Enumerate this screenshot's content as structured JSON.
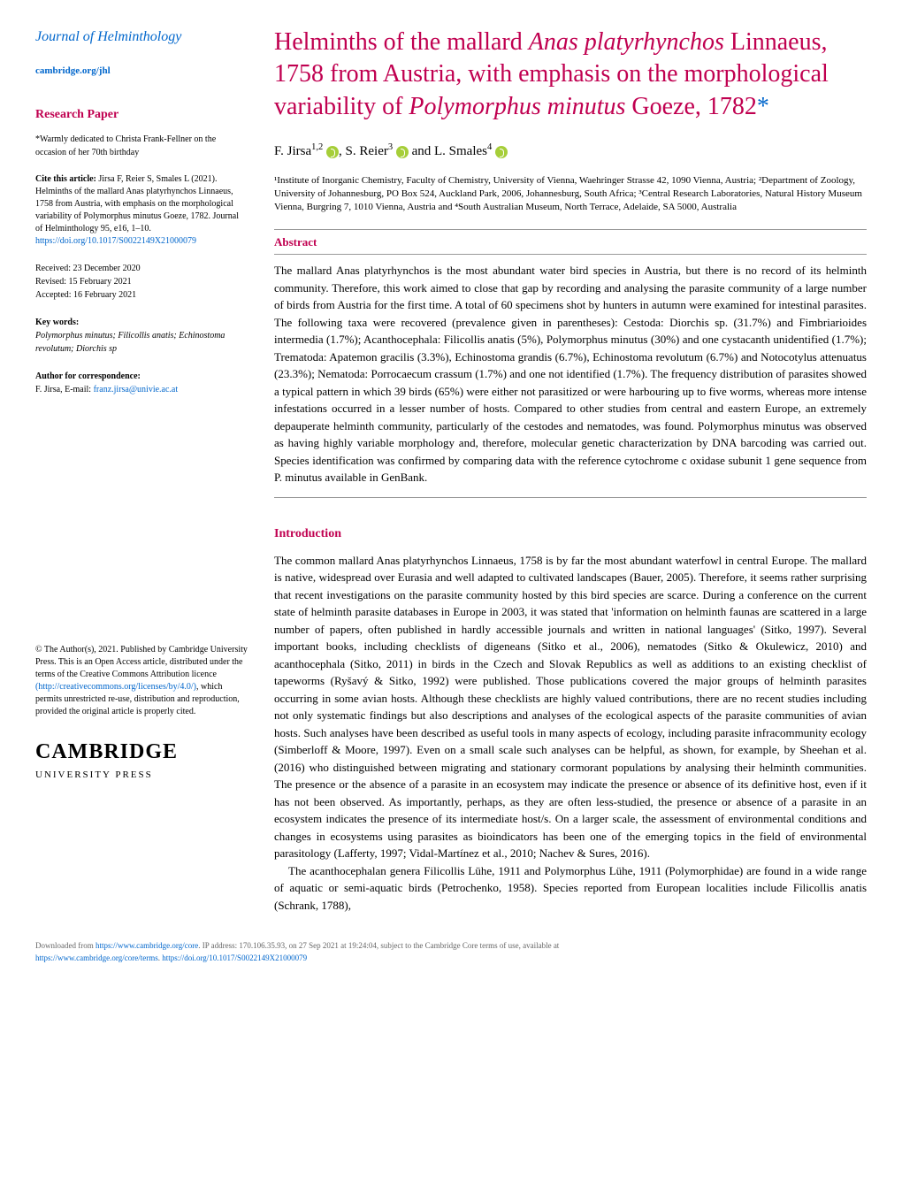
{
  "journal": {
    "name": "Journal of Helminthology",
    "link": "cambridge.org/jhl"
  },
  "sidebar": {
    "paper_label": "Research Paper",
    "dedication": "*Warmly dedicated to Christa Frank-Fellner on the occasion of her 70th birthday",
    "cite_label": "Cite this article:",
    "citation": "Jirsa F, Reier S, Smales L (2021). Helminths of the mallard Anas platyrhynchos Linnaeus, 1758 from Austria, with emphasis on the morphological variability of Polymorphus minutus Goeze, 1782. Journal of Helminthology 95, e16, 1–10.",
    "doi": "https://doi.org/10.1017/S0022149X21000079",
    "received": "Received: 23 December 2020",
    "revised": "Revised: 15 February 2021",
    "accepted": "Accepted: 16 February 2021",
    "keywords_label": "Key words:",
    "keywords": "Polymorphus minutus; Filicollis anatis; Echinostoma revolutum; Diorchis sp",
    "corr_label": "Author for correspondence:",
    "corr_text": "F. Jirsa, E-mail:",
    "corr_email": "franz.jirsa@univie.ac.at",
    "license": "© The Author(s), 2021. Published by Cambridge University Press. This is an Open Access article, distributed under the terms of the Creative Commons Attribution licence",
    "license_url": "(http://creativecommons.org/licenses/by/4.0/)",
    "license_cont": ", which permits unrestricted re-use, distribution and reproduction, provided the original article is properly cited.",
    "logo_main": "CAMBRIDGE",
    "logo_sub": "UNIVERSITY PRESS"
  },
  "article": {
    "title_pre": "Helminths of the mallard ",
    "title_sp1": "Anas platyrhynchos",
    "title_mid": " Linnaeus, 1758 from Austria, with emphasis on the morphological variability of ",
    "title_sp2": "Polymorphus minutus",
    "title_end": " Goeze, 1782",
    "title_star": "*",
    "authors_1": "F. Jirsa",
    "authors_1_sup": "1,2",
    "authors_2": ", S. Reier",
    "authors_2_sup": "3",
    "authors_3": " and L. Smales",
    "authors_3_sup": "4",
    "affiliations": "¹Institute of Inorganic Chemistry, Faculty of Chemistry, University of Vienna, Waehringer Strasse 42, 1090 Vienna, Austria; ²Department of Zoology, University of Johannesburg, PO Box 524, Auckland Park, 2006, Johannesburg, South Africa; ³Central Research Laboratories, Natural History Museum Vienna, Burgring 7, 1010 Vienna, Austria and ⁴South Australian Museum, North Terrace, Adelaide, SA 5000, Australia",
    "abstract_heading": "Abstract",
    "abstract": "The mallard Anas platyrhynchos is the most abundant water bird species in Austria, but there is no record of its helminth community. Therefore, this work aimed to close that gap by recording and analysing the parasite community of a large number of birds from Austria for the first time. A total of 60 specimens shot by hunters in autumn were examined for intestinal parasites. The following taxa were recovered (prevalence given in parentheses): Cestoda: Diorchis sp. (31.7%) and Fimbriarioides intermedia (1.7%); Acanthocephala: Filicollis anatis (5%), Polymorphus minutus (30%) and one cystacanth unidentified (1.7%); Trematoda: Apatemon gracilis (3.3%), Echinostoma grandis (6.7%), Echinostoma revolutum (6.7%) and Notocotylus attenuatus (23.3%); Nematoda: Porrocaecum crassum (1.7%) and one not identified (1.7%). The frequency distribution of parasites showed a typical pattern in which 39 birds (65%) were either not parasitized or were harbouring up to five worms, whereas more intense infestations occurred in a lesser number of hosts. Compared to other studies from central and eastern Europe, an extremely depauperate helminth community, particularly of the cestodes and nematodes, was found. Polymorphus minutus was observed as having highly variable morphology and, therefore, molecular genetic characterization by DNA barcoding was carried out. Species identification was confirmed by comparing data with the reference cytochrome c oxidase subunit 1 gene sequence from P. minutus available in GenBank.",
    "intro_heading": "Introduction",
    "intro_p1": "The common mallard Anas platyrhynchos Linnaeus, 1758 is by far the most abundant waterfowl in central Europe. The mallard is native, widespread over Eurasia and well adapted to cultivated landscapes (Bauer, 2005). Therefore, it seems rather surprising that recent investigations on the parasite community hosted by this bird species are scarce. During a conference on the current state of helminth parasite databases in Europe in 2003, it was stated that 'information on helminth faunas are scattered in a large number of papers, often published in hardly accessible journals and written in national languages' (Sitko, 1997). Several important books, including checklists of digeneans (Sitko et al., 2006), nematodes (Sitko & Okulewicz, 2010) and acanthocephala (Sitko, 2011) in birds in the Czech and Slovak Republics as well as additions to an existing checklist of tapeworms (Ryšavý & Sitko, 1992) were published. Those publications covered the major groups of helminth parasites occurring in some avian hosts. Although these checklists are highly valued contributions, there are no recent studies including not only systematic findings but also descriptions and analyses of the ecological aspects of the parasite communities of avian hosts. Such analyses have been described as useful tools in many aspects of ecology, including parasite infracommunity ecology (Simberloff & Moore, 1997). Even on a small scale such analyses can be helpful, as shown, for example, by Sheehan et al. (2016) who distinguished between migrating and stationary cormorant populations by analysing their helminth communities. The presence or the absence of a parasite in an ecosystem may indicate the presence or absence of its definitive host, even if it has not been observed. As importantly, perhaps, as they are often less-studied, the presence or absence of a parasite in an ecosystem indicates the presence of its intermediate host/s. On a larger scale, the assessment of environmental conditions and changes in ecosystems using parasites as bioindicators has been one of the emerging topics in the field of environmental parasitology (Lafferty, 1997; Vidal-Martínez et al., 2010; Nachev & Sures, 2016).",
    "intro_p2": "The acanthocephalan genera Filicollis Lühe, 1911 and Polymorphus Lühe, 1911 (Polymorphidae) are found in a wide range of aquatic or semi-aquatic birds (Petrochenko, 1958). Species reported from European localities include Filicollis anatis (Schrank, 1788),"
  },
  "footer": {
    "text1": "Downloaded from ",
    "url1": "https://www.cambridge.org/core",
    "text2": ". IP address: 170.106.35.93, on 27 Sep 2021 at 19:24:04, subject to the Cambridge Core terms of use, available at",
    "url2": "https://www.cambridge.org/core/terms",
    "text3": ". ",
    "url3": "https://doi.org/10.1017/S0022149X21000079"
  },
  "colors": {
    "accent": "#c00050",
    "link": "#0066cc",
    "text": "#000000",
    "orcid": "#a6ce39"
  }
}
